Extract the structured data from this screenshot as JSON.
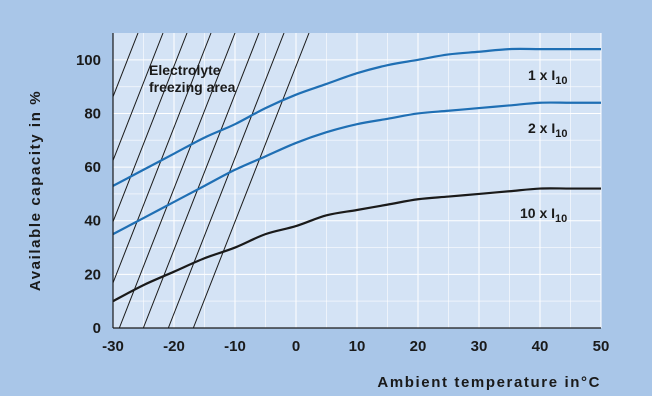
{
  "chart_data": {
    "type": "line",
    "title": "",
    "xlabel": "Ambient temperature in°C",
    "ylabel": "Available capacity in %",
    "xlim": [
      -30,
      50
    ],
    "ylim": [
      0,
      110
    ],
    "x_ticks": [
      "-30",
      "-20",
      "-10",
      "0",
      "10",
      "20",
      "30",
      "40",
      "50"
    ],
    "y_ticks": [
      "0",
      "20",
      "40",
      "60",
      "80",
      "100"
    ],
    "grid": true,
    "annotation": {
      "lines": [
        "Electrolyte",
        "freezing area"
      ]
    },
    "series": [
      {
        "name": "1 x I10",
        "label_main": "1 x I",
        "label_sub": "10",
        "color": "#1f6fb4",
        "x": [
          -30,
          -25,
          -20,
          -15,
          -10,
          -5,
          0,
          5,
          10,
          15,
          20,
          25,
          30,
          35,
          40,
          45,
          50
        ],
        "y": [
          53,
          59,
          65,
          71,
          76,
          82,
          87,
          91,
          95,
          98,
          100,
          102,
          103,
          104,
          104,
          104,
          104
        ]
      },
      {
        "name": "2 x I10",
        "label_main": "2 x I",
        "label_sub": "10",
        "color": "#1f6fb4",
        "x": [
          -30,
          -25,
          -20,
          -15,
          -10,
          -5,
          0,
          5,
          10,
          15,
          20,
          25,
          30,
          35,
          40,
          45,
          50
        ],
        "y": [
          35,
          41,
          47,
          53,
          59,
          64,
          69,
          73,
          76,
          78,
          80,
          81,
          82,
          83,
          84,
          84,
          84
        ]
      },
      {
        "name": "10 x I10",
        "label_main": "10 x I",
        "label_sub": "10",
        "color": "#1a1a1a",
        "x": [
          -30,
          -25,
          -20,
          -15,
          -10,
          -5,
          0,
          5,
          10,
          15,
          20,
          25,
          30,
          35,
          40,
          45,
          50
        ],
        "y": [
          10,
          16,
          21,
          26,
          30,
          35,
          38,
          42,
          44,
          46,
          48,
          49,
          50,
          51,
          52,
          52,
          52
        ]
      }
    ],
    "colors": {
      "frame_bg": "#a9c6e8",
      "plot_bg": "#d4e3f5",
      "grid": "#ffffff",
      "text": "#1a1a1a"
    }
  }
}
